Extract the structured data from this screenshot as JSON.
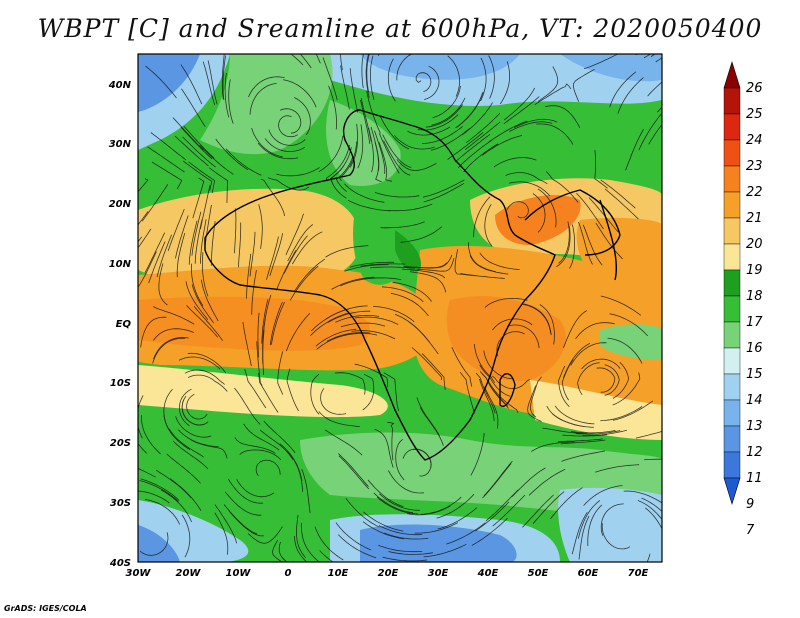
{
  "title": "WBPT [C] and Sreamline at 600hPa, VT: 2020050400",
  "credit": "GrADS: IGES/COLA",
  "axes": {
    "lat_ticks": [
      "40N",
      "30N",
      "20N",
      "10N",
      "EQ",
      "10S",
      "20S",
      "30S",
      "40S"
    ],
    "lon_ticks": [
      "30W",
      "20W",
      "10W",
      "0",
      "10E",
      "20E",
      "30E",
      "40E",
      "50E",
      "60E",
      "70E"
    ]
  },
  "colorbar": {
    "levels": [
      "26",
      "25",
      "24",
      "23",
      "22",
      "21",
      "20",
      "19",
      "18",
      "17",
      "16",
      "15",
      "14",
      "13",
      "12",
      "11",
      "9",
      "7"
    ],
    "colors": [
      "#8b0000",
      "#b4140a",
      "#dc2810",
      "#f05014",
      "#f5821e",
      "#f5a028",
      "#f5c864",
      "#fae696",
      "#1ea01e",
      "#37be37",
      "#78d278",
      "#d2f0f0",
      "#a0d2f0",
      "#78b4eb",
      "#5a96e1",
      "#3c78dc",
      "#1e5ad2"
    ]
  }
}
